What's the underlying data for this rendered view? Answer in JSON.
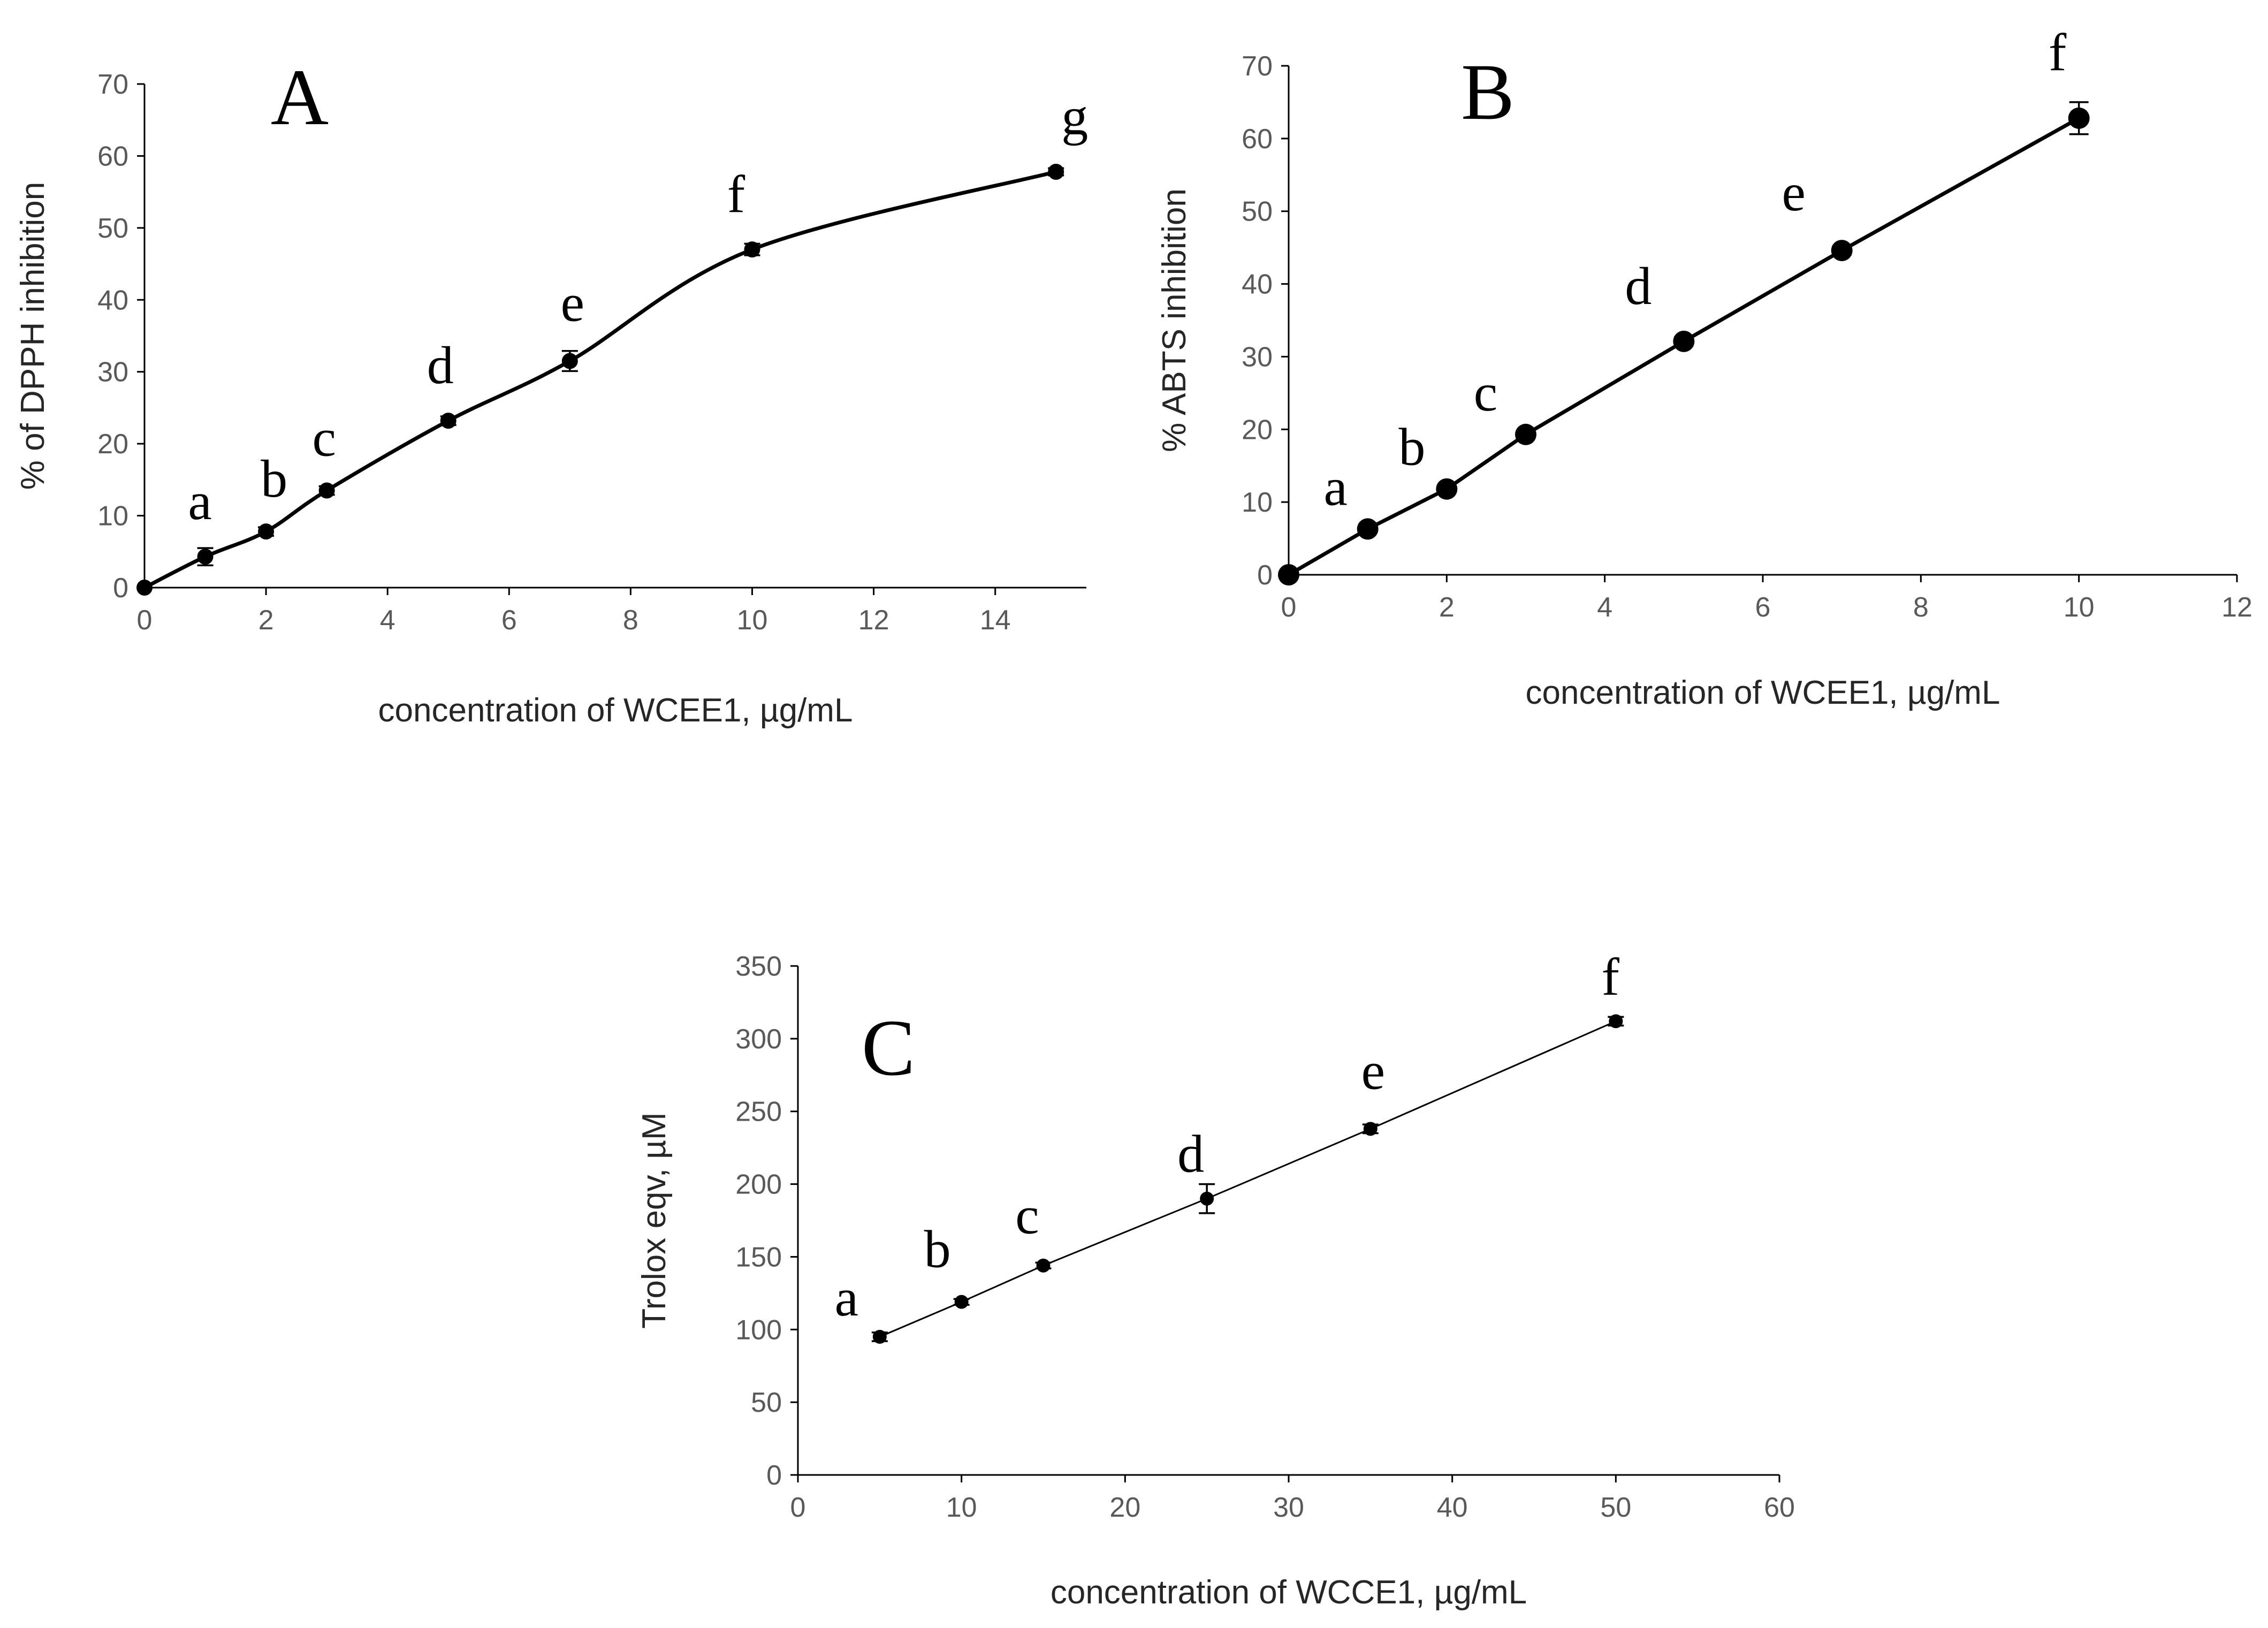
{
  "chart_data": [
    {
      "id": "A",
      "type": "line",
      "panel_label": "A",
      "smooth": true,
      "xlabel": "concentration of WCEE1, µg/mL",
      "ylabel": "% of DPPH inhibition",
      "xlim": [
        0,
        15.5
      ],
      "ylim": [
        0,
        70
      ],
      "xticks": [
        0,
        2,
        4,
        6,
        8,
        10,
        12,
        14
      ],
      "yticks": [
        0,
        10,
        20,
        30,
        40,
        50,
        60,
        70
      ],
      "grid": false,
      "series": [
        {
          "name": "DPPH",
          "x": [
            0,
            1,
            2,
            3,
            5,
            7,
            10,
            15
          ],
          "y": [
            0,
            4.3,
            7.8,
            13.5,
            23.2,
            31.5,
            47.0,
            57.8
          ],
          "err": [
            0,
            1.2,
            0.6,
            0.6,
            0.6,
            1.4,
            0.8,
            0.5
          ],
          "labels": [
            "",
            "a",
            "b",
            "c",
            "d",
            "e",
            "f",
            "g"
          ]
        }
      ]
    },
    {
      "id": "B",
      "type": "line",
      "panel_label": "B",
      "smooth": false,
      "xlabel": "concentration of WCEE1, µg/mL",
      "ylabel": "% ABTS inhibition",
      "xlim": [
        0,
        12
      ],
      "ylim": [
        0,
        70
      ],
      "xticks": [
        0,
        2,
        4,
        6,
        8,
        10,
        12
      ],
      "yticks": [
        0,
        10,
        20,
        30,
        40,
        50,
        60,
        70
      ],
      "grid": false,
      "series": [
        {
          "name": "ABTS",
          "x": [
            0,
            1,
            2,
            3,
            5,
            7,
            10
          ],
          "y": [
            0,
            6.3,
            11.8,
            19.3,
            32.1,
            44.6,
            62.8
          ],
          "err": [
            0,
            0.5,
            0.5,
            0.5,
            0.6,
            0.6,
            2.2
          ],
          "labels": [
            "",
            "a",
            "b",
            "c",
            "d",
            "e",
            "f"
          ]
        }
      ]
    },
    {
      "id": "C",
      "type": "line",
      "panel_label": "C",
      "smooth": false,
      "xlabel": "concentration of WCCE1, µg/mL",
      "ylabel": "Trolox eqv, µM",
      "xlim": [
        0,
        60
      ],
      "ylim": [
        0,
        350
      ],
      "xticks": [
        0,
        10,
        20,
        30,
        40,
        50,
        60
      ],
      "yticks": [
        0,
        50,
        100,
        150,
        200,
        250,
        300,
        350
      ],
      "grid": false,
      "series": [
        {
          "name": "Trolox",
          "x": [
            5,
            10,
            15,
            25,
            35,
            50
          ],
          "y": [
            95,
            119,
            144,
            190,
            238,
            312
          ],
          "err": [
            3,
            2,
            2,
            10,
            3,
            3
          ],
          "labels": [
            "a",
            "b",
            "c",
            "d",
            "e",
            "f"
          ]
        }
      ]
    }
  ]
}
